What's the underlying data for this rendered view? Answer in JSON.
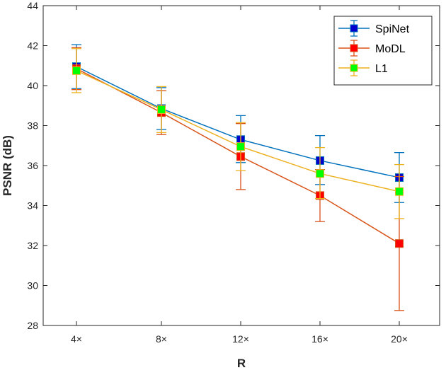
{
  "chart_data": {
    "type": "line",
    "title": "",
    "xlabel": "R",
    "ylabel": "PSNR (dB)",
    "categories": [
      "4×",
      "8×",
      "12×",
      "16×",
      "20×"
    ],
    "ylim": [
      28,
      44
    ],
    "yticks": [
      28,
      30,
      32,
      34,
      36,
      38,
      40,
      42,
      44
    ],
    "grid": false,
    "legend_position": "top-right",
    "series": [
      {
        "name": "SpiNet",
        "color": "#0072BD",
        "marker_color": "#0000CC",
        "values": [
          40.95,
          38.85,
          37.3,
          36.25,
          35.4
        ],
        "err_low": [
          1.1,
          1.05,
          1.15,
          1.2,
          1.25
        ],
        "err_high": [
          1.1,
          1.05,
          1.2,
          1.25,
          1.25
        ]
      },
      {
        "name": "MoDL",
        "color": "#D95319",
        "marker_color": "#FF0000",
        "values": [
          40.85,
          38.65,
          36.45,
          34.5,
          32.1
        ],
        "err_low": [
          1.05,
          1.1,
          1.65,
          1.3,
          3.35
        ],
        "err_high": [
          1.05,
          1.1,
          1.65,
          1.3,
          3.35
        ]
      },
      {
        "name": "L1",
        "color": "#EDB120",
        "marker_color": "#00FF00",
        "values": [
          40.75,
          38.8,
          36.95,
          35.6,
          34.7
        ],
        "err_low": [
          1.1,
          1.15,
          1.2,
          1.25,
          1.35
        ],
        "err_high": [
          1.1,
          1.15,
          1.2,
          1.3,
          1.35
        ]
      }
    ]
  }
}
